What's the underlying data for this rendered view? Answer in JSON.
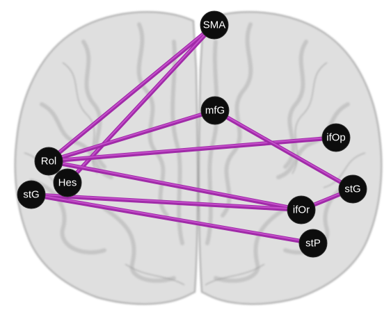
{
  "colors": {
    "edge": "#a02aa8",
    "edge_highlight": "#d35fd9",
    "node": "#0d0d0d",
    "node_text": "#ffffff",
    "brain_fill": "#d7d7d7",
    "brain_stroke": "#9a9a9a"
  },
  "nodes": [
    {
      "id": "SMA",
      "label": "SMA"
    },
    {
      "id": "mfG",
      "label": "mfG"
    },
    {
      "id": "ifOp",
      "label": "ifOp"
    },
    {
      "id": "Rol",
      "label": "Rol"
    },
    {
      "id": "Hes",
      "label": "Hes"
    },
    {
      "id": "stG_L",
      "label": "stG"
    },
    {
      "id": "stG_R",
      "label": "stG"
    },
    {
      "id": "ifOr",
      "label": "ifOr"
    },
    {
      "id": "stP",
      "label": "stP"
    }
  ],
  "edges": [
    {
      "source": "Rol",
      "target": "SMA"
    },
    {
      "source": "Hes",
      "target": "SMA"
    },
    {
      "source": "Rol",
      "target": "mfG"
    },
    {
      "source": "Rol",
      "target": "ifOp"
    },
    {
      "source": "Rol",
      "target": "ifOr"
    },
    {
      "source": "mfG",
      "target": "stG_R"
    },
    {
      "source": "stG_L",
      "target": "ifOr"
    },
    {
      "source": "stG_L",
      "target": "stP"
    },
    {
      "source": "ifOr",
      "target": "stG_R"
    }
  ]
}
